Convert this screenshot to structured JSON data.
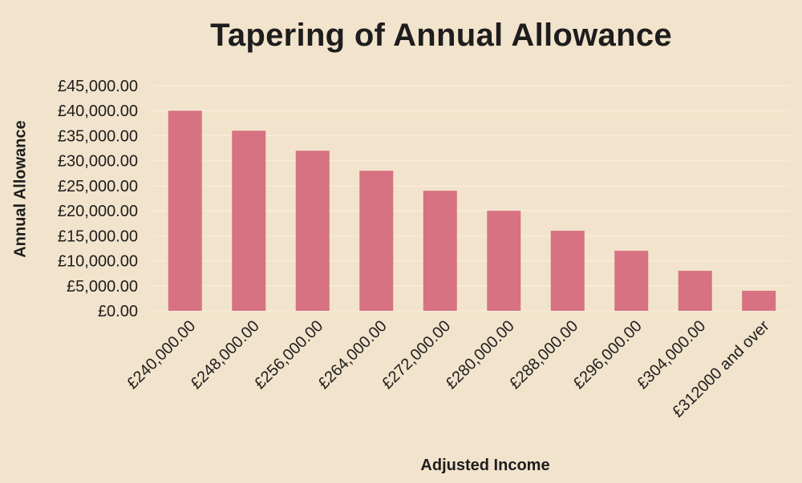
{
  "chart_data": {
    "type": "bar",
    "title": "Tapering of Annual Allowance",
    "xlabel": "Adjusted Income",
    "ylabel": "Annual Allowance",
    "categories": [
      "£240,000.00",
      "£248,000.00",
      "£256,000.00",
      "£264,000.00",
      "£272,000.00",
      "£280,000.00",
      "£288,000.00",
      "£296,000.00",
      "£304,000.00",
      "£312000 and over"
    ],
    "values": [
      40000,
      36000,
      32000,
      28000,
      24000,
      20000,
      16000,
      12000,
      8000,
      4000
    ],
    "yticks": [
      "£0.00",
      "£5,000.00",
      "£10,000.00",
      "£15,000.00",
      "£20,000.00",
      "£25,000.00",
      "£30,000.00",
      "£35,000.00",
      "£40,000.00",
      "£45,000.00"
    ],
    "ylim": [
      0,
      45000
    ],
    "grid": true,
    "legend": "none",
    "colors": {
      "bar": "#d67282",
      "background": "#f2e3cc",
      "grid": "#f8ecda"
    }
  }
}
